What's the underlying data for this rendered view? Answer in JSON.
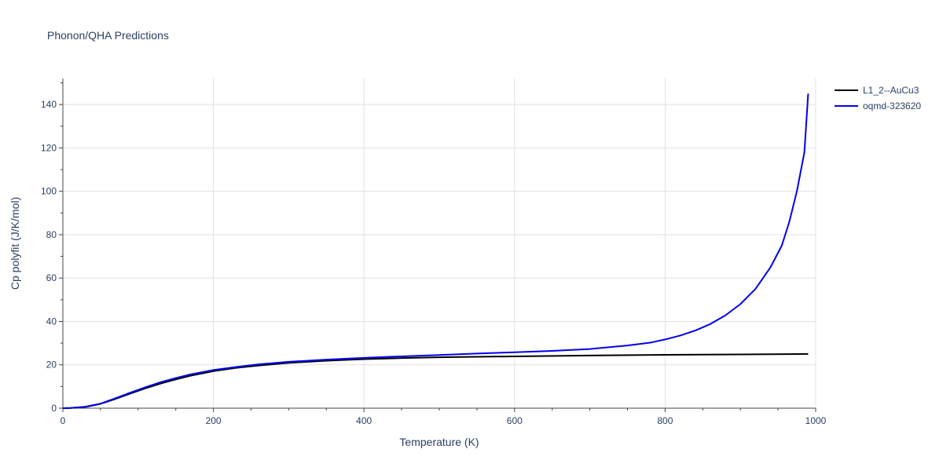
{
  "chart_data": {
    "type": "line",
    "title": "Phonon/QHA Predictions",
    "xlabel": "Temperature (K)",
    "ylabel": "Cp polyfit (J/K/mol)",
    "xlim": [
      0,
      1000
    ],
    "ylim": [
      0,
      152
    ],
    "xticks": [
      0,
      200,
      400,
      600,
      800,
      1000
    ],
    "yticks": [
      0,
      20,
      40,
      60,
      80,
      100,
      120,
      140
    ],
    "grid": true,
    "legend_position": "top-right",
    "series": [
      {
        "name": "L1_2--AuCu3",
        "color": "#000000",
        "x": [
          0,
          10,
          30,
          50,
          70,
          90,
          110,
          130,
          150,
          170,
          200,
          230,
          260,
          300,
          350,
          400,
          450,
          500,
          600,
          700,
          800,
          900,
          990
        ],
        "y": [
          0,
          0.1,
          0.6,
          2.0,
          4.3,
          6.8,
          9.2,
          11.4,
          13.3,
          15.0,
          17.1,
          18.6,
          19.7,
          20.9,
          21.9,
          22.6,
          23.1,
          23.5,
          23.9,
          24.3,
          24.6,
          24.8,
          25.0
        ]
      },
      {
        "name": "oqmd-323620",
        "color": "#0000ee",
        "x": [
          0,
          10,
          30,
          50,
          70,
          90,
          110,
          130,
          150,
          170,
          200,
          230,
          260,
          300,
          350,
          400,
          450,
          500,
          550,
          600,
          650,
          700,
          750,
          780,
          800,
          820,
          840,
          860,
          880,
          900,
          920,
          940,
          955,
          965,
          975,
          985,
          990
        ],
        "y": [
          0,
          0.1,
          0.7,
          2.1,
          4.6,
          7.2,
          9.7,
          12.0,
          13.9,
          15.6,
          17.6,
          19.0,
          20.2,
          21.4,
          22.4,
          23.2,
          23.9,
          24.5,
          25.2,
          25.8,
          26.4,
          27.3,
          28.9,
          30.2,
          31.7,
          33.5,
          35.8,
          38.8,
          42.8,
          48.0,
          55.0,
          65.0,
          75.0,
          86.0,
          100.0,
          118.0,
          145.0
        ]
      }
    ]
  }
}
